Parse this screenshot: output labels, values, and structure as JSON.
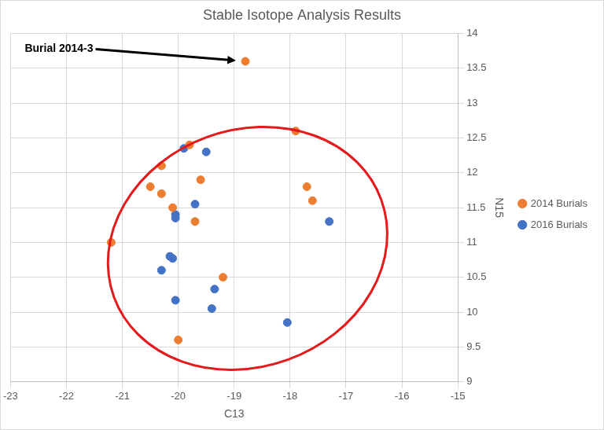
{
  "chart_data": {
    "type": "scatter",
    "title": "Stable Isotope Analysis Results",
    "xlabel": "C13",
    "ylabel": "N15",
    "xlim": [
      -23,
      -15
    ],
    "xticks": [
      -23,
      -22,
      -21,
      -20,
      -19,
      -18,
      -17,
      -16,
      -15
    ],
    "ylim": [
      9,
      14
    ],
    "yticks": [
      9,
      9.5,
      10,
      10.5,
      11,
      11.5,
      12,
      12.5,
      13,
      13.5,
      14
    ],
    "grid": true,
    "legend": "right",
    "series": [
      {
        "name": "2014 Burials",
        "color": "#ed7d31",
        "marker": "circle",
        "x": [
          -18.8,
          -19.8,
          -17.9,
          -20.3,
          -20.5,
          -20.3,
          -19.6,
          -20.1,
          -19.7,
          -17.7,
          -17.6,
          -21.2,
          -19.2,
          -20.0
        ],
        "values": [
          13.6,
          12.4,
          12.6,
          12.1,
          11.8,
          11.7,
          11.9,
          11.5,
          11.3,
          11.8,
          11.6,
          11.0,
          10.5,
          9.6
        ]
      },
      {
        "name": "2016 Burials",
        "color": "#4472c4",
        "marker": "circle",
        "x": [
          -19.9,
          -19.5,
          -20.05,
          -20.05,
          -19.7,
          -17.3,
          -20.15,
          -20.1,
          -20.3,
          -19.35,
          -20.05,
          -19.4,
          -18.05
        ],
        "values": [
          12.35,
          12.3,
          11.4,
          11.35,
          11.55,
          11.3,
          10.8,
          10.77,
          10.6,
          10.33,
          10.17,
          10.05,
          9.85
        ]
      }
    ],
    "annotations": [
      {
        "text": "Burial 2014-3",
        "x": -18.8,
        "y": 13.6
      }
    ]
  }
}
